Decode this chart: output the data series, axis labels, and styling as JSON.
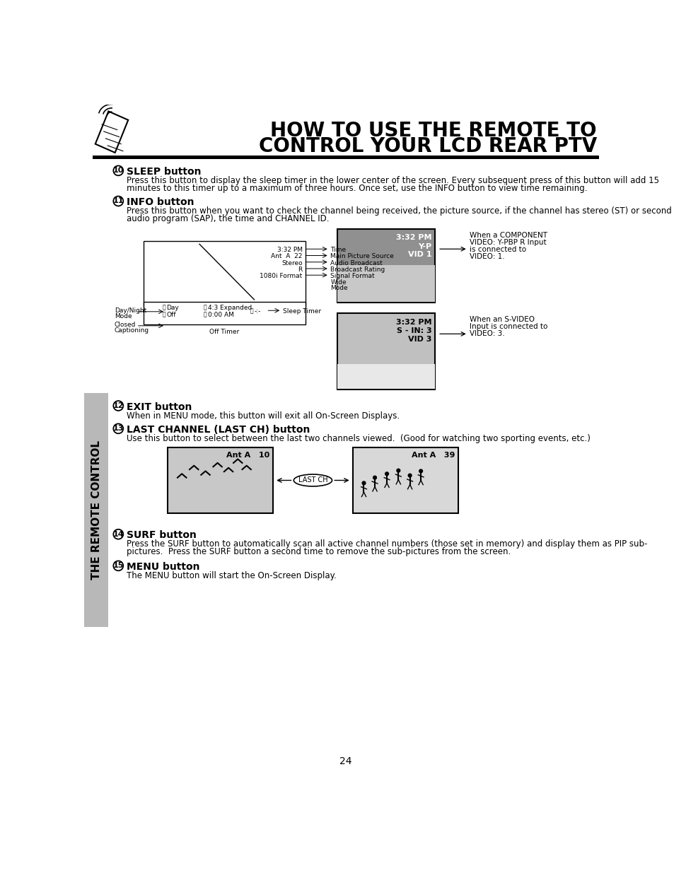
{
  "title_line1": "HOW TO USE THE REMOTE TO",
  "title_line2": "CONTROL YOUR LCD REAR PTV",
  "page_number": "24",
  "bg_color": "#ffffff",
  "sidebar_color": "#b0b0b0",
  "sidebar_text": "THE REMOTE CONTROL",
  "section10_num": "10",
  "section10_title": "SLEEP button",
  "section10_body1": "Press this button to display the sleep timer in the lower center of the screen. Every subsequent press of this button will add 15",
  "section10_body2": "minutes to this timer up to a maximum of three hours. Once set, use the INFO button to view time remaining.",
  "section11_num": "11",
  "section11_title": "INFO button",
  "section11_body1": "Press this button when you want to check the channel being received, the picture source, if the channel has stereo (ST) or second",
  "section11_body2": "audio program (SAP), the time and CHANNEL ID.",
  "section12_num": "12",
  "section12_title": "EXIT button",
  "section12_body": "When in MENU mode, this button will exit all On-Screen Displays.",
  "section13_num": "13",
  "section13_title": "LAST CHANNEL (LAST CH) button",
  "section13_body": "Use this button to select between the last two channels viewed.  (Good for watching two sporting events, etc.)",
  "section14_num": "14",
  "section14_title": "SURF button",
  "section14_body1": "Press the SURF button to automatically scan all active channel numbers (those set in memory) and display them as PIP sub-",
  "section14_body2": "pictures.  Press the SURF button a second time to remove the sub-pictures from the screen.",
  "section15_num": "15",
  "section15_title": "MENU button",
  "section15_body": "The MENU button will start the On-Screen Display.",
  "info_items": [
    [
      "3:32 PM",
      "Time"
    ],
    [
      "Ant  A  22",
      "Main Picture Source"
    ],
    [
      "Stereo",
      "Audio Broadcast"
    ],
    [
      "R",
      "Broadcast Rating"
    ],
    [
      "1080i Format",
      "Signal Format"
    ]
  ],
  "pic1_overlay": [
    "3:32 PM",
    "Y-PBP R",
    "VID 1"
  ],
  "pic1_desc1": "When a COMPONENT",
  "pic1_desc2": "VIDEO: Y-PBP R Input",
  "pic1_desc3": "is connected to",
  "pic1_desc4": "VIDEO: 1.",
  "pic2_overlay": [
    "3:32 PM",
    "S - IN: 3",
    "VID 3"
  ],
  "pic2_desc1": "When an S-VIDEO",
  "pic2_desc2": "Input is connected to",
  "pic2_desc3": "VIDEO: 3."
}
